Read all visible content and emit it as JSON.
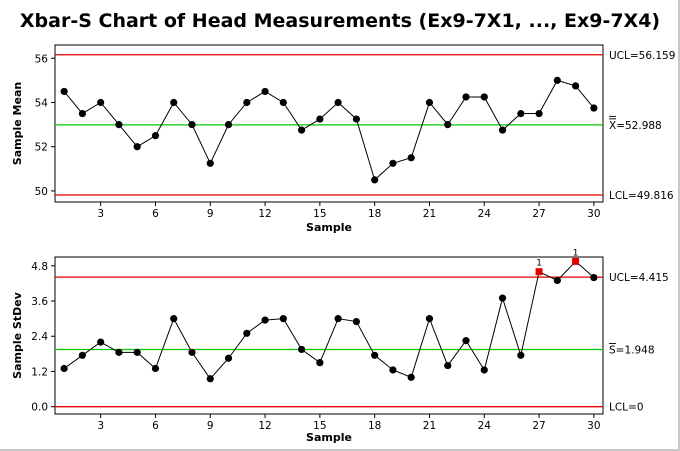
{
  "title": "Xbar-S Chart of Head Measurements (Ex9-7X1, ..., Ex9-7X4)",
  "colors": {
    "data": "#000000",
    "limit": "#e00000",
    "center": "#00c800",
    "flag": "#e00000"
  },
  "chart_data": [
    {
      "type": "line",
      "name": "xbar",
      "xlabel": "Sample",
      "ylabel": "Sample Mean",
      "x": [
        1,
        2,
        3,
        4,
        5,
        6,
        7,
        8,
        9,
        10,
        11,
        12,
        13,
        14,
        15,
        16,
        17,
        18,
        19,
        20,
        21,
        22,
        23,
        24,
        25,
        26,
        27,
        28,
        29,
        30
      ],
      "values": [
        54.5,
        53.5,
        54.0,
        53.0,
        52.0,
        52.5,
        54.0,
        53.0,
        51.25,
        53.0,
        54.0,
        54.5,
        54.0,
        52.75,
        53.25,
        54.0,
        53.25,
        50.5,
        51.25,
        51.5,
        54.0,
        53.0,
        54.25,
        54.25,
        52.75,
        53.5,
        53.5,
        55.0,
        54.75,
        53.75
      ],
      "xticks": [
        3,
        6,
        9,
        12,
        15,
        18,
        21,
        24,
        27,
        30
      ],
      "yticks": [
        "50",
        "52",
        "54",
        "56"
      ],
      "ylim": [
        49.5,
        56.6
      ],
      "xlim": [
        0.5,
        30.5
      ],
      "ucl": 56.159,
      "center": 52.988,
      "lcl": 49.816,
      "ucl_label": "UCL=56.159",
      "center_label": "X=52.988",
      "lcl_label": "LCL=49.816",
      "flagged": [],
      "flag_label": ""
    },
    {
      "type": "line",
      "name": "s",
      "xlabel": "Sample",
      "ylabel": "Sample StDev",
      "x": [
        1,
        2,
        3,
        4,
        5,
        6,
        7,
        8,
        9,
        10,
        11,
        12,
        13,
        14,
        15,
        16,
        17,
        18,
        19,
        20,
        21,
        22,
        23,
        24,
        25,
        26,
        27,
        28,
        29,
        30
      ],
      "values": [
        1.3,
        1.75,
        2.2,
        1.85,
        1.85,
        1.3,
        3.0,
        1.85,
        0.95,
        1.65,
        2.5,
        2.95,
        3.0,
        1.95,
        1.5,
        3.0,
        2.9,
        1.75,
        1.25,
        1.0,
        3.0,
        1.4,
        2.25,
        1.25,
        3.7,
        1.75,
        4.6,
        4.3,
        4.95,
        4.4
      ],
      "xticks": [
        3,
        6,
        9,
        12,
        15,
        18,
        21,
        24,
        27,
        30
      ],
      "yticks": [
        "0.0",
        "1.2",
        "2.4",
        "3.6",
        "4.8"
      ],
      "ylim": [
        -0.25,
        5.1
      ],
      "xlim": [
        0.5,
        30.5
      ],
      "ucl": 4.415,
      "center": 1.948,
      "lcl": 0,
      "ucl_label": "UCL=4.415",
      "center_label": "S=1.948",
      "lcl_label": "LCL=0",
      "flagged": [
        27,
        29
      ],
      "flag_label": "1"
    }
  ]
}
